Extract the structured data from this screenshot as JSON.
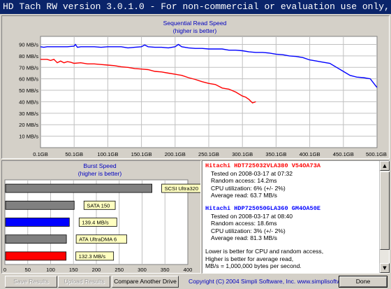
{
  "window": {
    "title": "HD Tach RW version 3.0.1.0  - For non-commercial or evaluation use only, see license agreement."
  },
  "chart_data": [
    {
      "type": "line",
      "title": "Sequential Read Speed",
      "subtitle": "(higher is better)",
      "x_tick_labels": [
        "0.1GB",
        "50.1GB",
        "100.1GB",
        "150.1GB",
        "200.1GB",
        "250.1GB",
        "300.1GB",
        "350.1GB",
        "400.1GB",
        "450.1GB",
        "500.1GB"
      ],
      "y_tick_labels": [
        "10 MB/s",
        "20 MB/s",
        "30 MB/s",
        "40 MB/s",
        "50 MB/s",
        "60 MB/s",
        "70 MB/s",
        "80 MB/s",
        "90 MB/s"
      ],
      "xlim": [
        0.1,
        500.1
      ],
      "ylim": [
        0,
        97
      ],
      "grid": true,
      "series": [
        {
          "color": "#0000ff",
          "x": [
            0,
            5,
            10,
            20,
            30,
            40,
            50,
            52,
            55,
            60,
            70,
            80,
            90,
            100,
            110,
            120,
            130,
            140,
            150,
            155,
            160,
            170,
            180,
            190,
            200,
            205,
            210,
            220,
            230,
            240,
            250,
            260,
            270,
            280,
            290,
            300,
            310,
            320,
            330,
            340,
            350,
            360,
            370,
            380,
            390,
            400,
            410,
            420,
            430,
            440,
            450,
            460,
            470,
            480,
            490,
            500
          ],
          "y": [
            88,
            87.5,
            88,
            88,
            88,
            88,
            88.5,
            90,
            87.5,
            88,
            88,
            88,
            87.5,
            88,
            88,
            88,
            87,
            87.5,
            88,
            89.5,
            88,
            87.5,
            87.5,
            87,
            88,
            90,
            88,
            87,
            86.5,
            86.5,
            86,
            86,
            86,
            85,
            85,
            84.5,
            83.5,
            83,
            83,
            82.5,
            81.5,
            81,
            80,
            79.5,
            78.5,
            76.5,
            75.5,
            74.5,
            73.5,
            70,
            66.5,
            63,
            61.5,
            61,
            60,
            52.5
          ]
        },
        {
          "color": "#ff0000",
          "x": [
            0,
            10,
            15,
            20,
            25,
            30,
            35,
            40,
            45,
            50,
            60,
            70,
            80,
            90,
            100,
            110,
            120,
            130,
            140,
            150,
            160,
            170,
            180,
            190,
            200,
            210,
            220,
            230,
            240,
            250,
            260,
            270,
            280,
            290,
            300,
            305,
            310,
            315,
            320
          ],
          "y": [
            77,
            77,
            76,
            77,
            74,
            75.5,
            74,
            75,
            74.5,
            73.5,
            74,
            73,
            73,
            72.5,
            72,
            71.5,
            70.5,
            70,
            69,
            68.5,
            68,
            66.5,
            66,
            65,
            64,
            63,
            61,
            59.5,
            57.5,
            56,
            55,
            52,
            51,
            48.5,
            45,
            44,
            42,
            39,
            40
          ]
        }
      ]
    },
    {
      "type": "bar",
      "title": "Burst Speed",
      "subtitle": "(higher is better)",
      "x_tick_labels": [
        "0",
        "50",
        "100",
        "150",
        "200",
        "250",
        "300",
        "350",
        "400"
      ],
      "xlim": [
        0,
        400
      ],
      "bars": [
        {
          "label": "SCSI Ultra320",
          "value": 320,
          "color": "#808080"
        },
        {
          "label": "SATA 150",
          "value": 150,
          "color": "#808080"
        },
        {
          "label": "139.4 MB/s",
          "value": 139.4,
          "color": "#0000ff"
        },
        {
          "label": "ATA UltraDMA 6",
          "value": 133,
          "color": "#808080"
        },
        {
          "label": "132.3 MB/s",
          "value": 132.3,
          "color": "#ff0000"
        }
      ]
    }
  ],
  "results": {
    "drive1": {
      "name": "Hitachi HDT725032VLA380 V54OA73A",
      "color": "#ff0000",
      "lines": [
        "Tested on 2008-03-17 at 07:32",
        "Random access: 14.2ms",
        "CPU utilization: 6% (+/- 2%)",
        "Average read: 63.7 MB/s"
      ]
    },
    "drive2": {
      "name": "Hitachi HDP725050GLA360 GM4OA50E",
      "color": "#0000ff",
      "lines": [
        "Tested on 2008-03-17 at 08:40",
        "Random access: 18.6ms",
        "CPU utilization: 3% (+/- 2%)",
        "Average read: 81.3 MB/s"
      ]
    },
    "footer": [
      "Lower is better for CPU and random access,",
      "Higher is better for average read,",
      "MB/s = 1,000,000 bytes per second."
    ]
  },
  "scrollbar": {
    "up": "▲",
    "down": "▼"
  },
  "buttons": {
    "save": "Save Results",
    "upload": "Upload Results",
    "compare": "Compare Another Drive",
    "done": "Done"
  },
  "copyright": "Copyright (C) 2004 Simpli Software, Inc. www.simplisoftware.com"
}
